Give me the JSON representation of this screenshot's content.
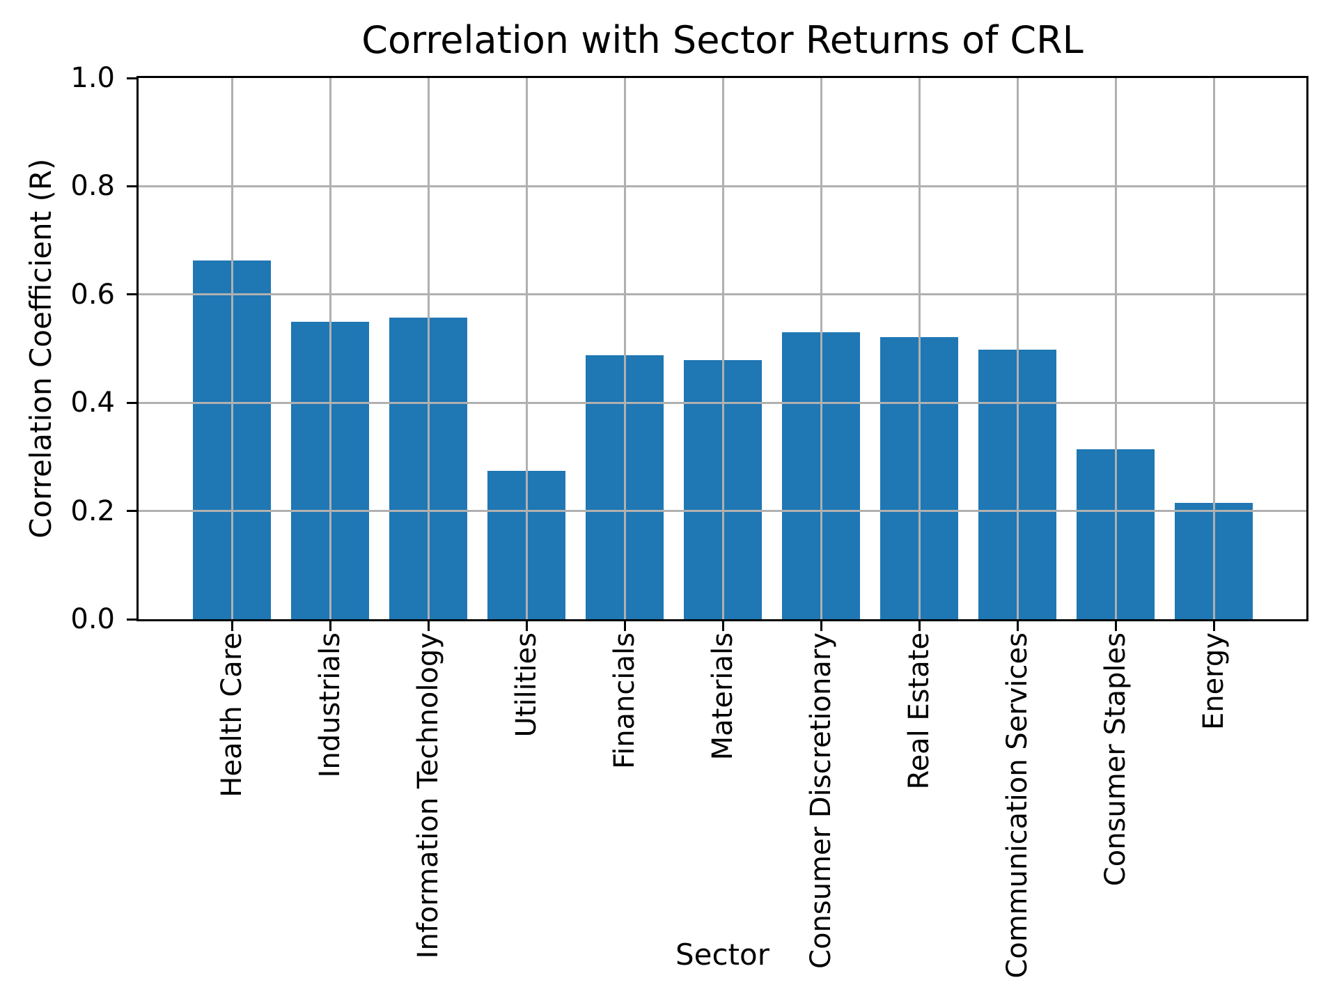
{
  "chart_data": {
    "type": "bar",
    "title": "Correlation with Sector Returns of CRL",
    "xlabel": "Sector",
    "ylabel": "Correlation Coefficient (R)",
    "categories": [
      "Health Care",
      "Industrials",
      "Information Technology",
      "Utilities",
      "Financials",
      "Materials",
      "Consumer Discretionary",
      "Real Estate",
      "Communication Services",
      "Consumer Staples",
      "Energy"
    ],
    "values": [
      0.663,
      0.55,
      0.557,
      0.274,
      0.488,
      0.479,
      0.53,
      0.521,
      0.498,
      0.314,
      0.215
    ],
    "ylim": [
      0.0,
      1.0
    ],
    "yticks": [
      0.0,
      0.2,
      0.4,
      0.6,
      0.8,
      1.0
    ],
    "ytick_labels": [
      "0.0",
      "0.2",
      "0.4",
      "0.6",
      "0.8",
      "1.0"
    ],
    "grid": true,
    "grid_over_bars": true,
    "legend": "none",
    "bar_color": "#1f77b4",
    "grid_color": "#b0b0b0",
    "axis_color": "#000000",
    "background_color": "#ffffff"
  }
}
